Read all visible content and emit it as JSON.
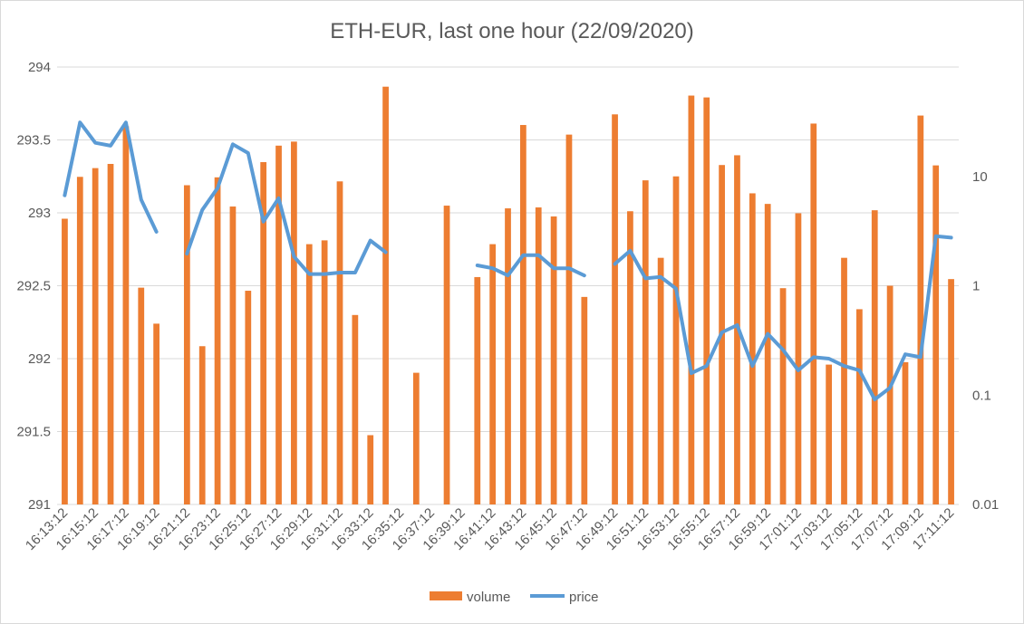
{
  "chart_data": {
    "type": "bar",
    "title": "ETH-EUR, last one hour (22/09/2020)",
    "xlabel": "",
    "ylabel": "",
    "x": [
      "16:13:12",
      "16:14:12",
      "16:15:12",
      "16:16:12",
      "16:17:12",
      "16:18:12",
      "16:19:12",
      "16:20:12",
      "16:21:12",
      "16:22:12",
      "16:23:12",
      "16:24:12",
      "16:25:12",
      "16:26:12",
      "16:27:12",
      "16:28:12",
      "16:29:12",
      "16:30:12",
      "16:31:12",
      "16:32:12",
      "16:33:12",
      "16:34:12",
      "16:35:12",
      "16:36:12",
      "16:37:12",
      "16:38:12",
      "16:39:12",
      "16:40:12",
      "16:41:12",
      "16:42:12",
      "16:43:12",
      "16:44:12",
      "16:45:12",
      "16:46:12",
      "16:47:12",
      "16:48:12",
      "16:49:12",
      "16:50:12",
      "16:51:12",
      "16:52:12",
      "16:53:12",
      "16:54:12",
      "16:55:12",
      "16:56:12",
      "16:57:12",
      "16:58:12",
      "16:59:12",
      "17:00:12",
      "17:01:12",
      "17:02:12",
      "17:03:12",
      "17:04:12",
      "17:05:12",
      "17:06:12",
      "17:07:12",
      "17:08:12",
      "17:09:12",
      "17:10:12",
      "17:11:12"
    ],
    "x_tick_labels": [
      "16:13:12",
      "16:15:12",
      "16:17:12",
      "16:19:12",
      "16:21:12",
      "16:23:12",
      "16:25:12",
      "16:27:12",
      "16:29:12",
      "16:31:12",
      "16:33:12",
      "16:35:12",
      "16:37:12",
      "16:39:12",
      "16:41:12",
      "16:43:12",
      "16:45:12",
      "16:47:12",
      "16:49:12",
      "16:51:12",
      "16:53:12",
      "16:55:12",
      "16:57:12",
      "16:59:12",
      "17:01:12",
      "17:03:12",
      "17:05:12",
      "17:07:12",
      "17:09:12",
      "17:11:12"
    ],
    "primary_axis": {
      "series": "price",
      "ylim": [
        291,
        294
      ],
      "ticks": [
        291,
        291.5,
        292,
        292.5,
        293,
        293.5,
        294
      ],
      "tick_labels": [
        "291",
        "291.5",
        "292",
        "292.5",
        "293",
        "293.5",
        "294"
      ]
    },
    "secondary_axis": {
      "series": "volume",
      "scale": "log",
      "ylim": [
        0.01,
        100
      ],
      "ticks": [
        0.01,
        0.1,
        1,
        10
      ],
      "tick_labels": [
        "0.01",
        "0.1",
        "1",
        "10"
      ]
    },
    "grid": true,
    "legend_position": "bottom",
    "series": [
      {
        "name": "volume",
        "type": "bar",
        "axis": "secondary",
        "color": "#ED7D31",
        "values": [
          4.1,
          9.9,
          11.9,
          13.0,
          28.7,
          0.96,
          0.45,
          null,
          8.3,
          0.28,
          9.8,
          5.3,
          0.9,
          13.5,
          19.1,
          20.8,
          2.4,
          2.6,
          9.0,
          0.54,
          0.043,
          66.1,
          null,
          0.16,
          null,
          5.4,
          null,
          1.2,
          2.4,
          5.1,
          29.5,
          5.2,
          4.3,
          24.1,
          0.79,
          null,
          36.9,
          4.8,
          9.2,
          1.8,
          10.0,
          54.8,
          52.7,
          12.7,
          15.6,
          7.0,
          5.6,
          0.95,
          4.6,
          30.4,
          0.19,
          1.8,
          0.61,
          4.9,
          1.0,
          0.2,
          36.0,
          12.6,
          1.15
        ]
      },
      {
        "name": "price",
        "type": "line",
        "axis": "primary",
        "color": "#5B9BD5",
        "values": [
          293.12,
          293.62,
          293.48,
          293.46,
          293.62,
          293.09,
          292.87,
          null,
          292.72,
          293.02,
          293.17,
          293.47,
          293.41,
          292.94,
          293.1,
          292.7,
          292.58,
          292.58,
          292.59,
          292.59,
          292.81,
          292.73,
          null,
          null,
          null,
          null,
          null,
          292.64,
          292.62,
          292.57,
          292.71,
          292.71,
          292.62,
          292.62,
          292.57,
          null,
          292.65,
          292.74,
          292.55,
          292.56,
          292.48,
          291.9,
          291.95,
          292.18,
          292.23,
          291.95,
          292.17,
          292.06,
          291.92,
          292.01,
          292,
          291.95,
          291.92,
          291.72,
          291.8,
          292.03,
          292.01,
          292.84,
          292.83
        ]
      }
    ]
  }
}
